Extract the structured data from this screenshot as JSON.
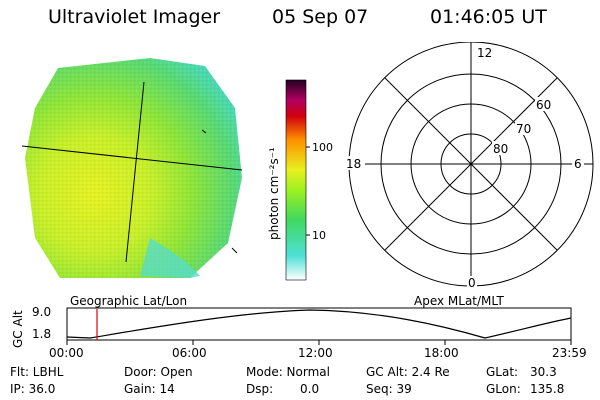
{
  "header": {
    "instrument": "Ultraviolet Imager",
    "date": "05 Sep 07",
    "time": "01:46:05 UT"
  },
  "colorbar": {
    "unit_label": "photon cm⁻²s⁻¹",
    "tick_labels": [
      "100",
      "10"
    ],
    "stops": [
      "#ffffff",
      "#4fe0d8",
      "#3fd860",
      "#9ef020",
      "#e8f020",
      "#ff9000",
      "#d00010",
      "#b00060",
      "#200020"
    ]
  },
  "geographic_panel": {
    "label": "Geographic Lat/Lon"
  },
  "polar_plot": {
    "label": "Apex MLat/MLT",
    "mlt_labels": {
      "top": "12",
      "left": "18",
      "right": "6",
      "bottom": "0"
    },
    "mlat_labels": [
      "60",
      "70",
      "80"
    ]
  },
  "altitude_plot": {
    "ylabel": "GC Alt",
    "y_ticks": [
      "9.0",
      "1.8"
    ],
    "x_ticks": [
      "00:00",
      "06:00",
      "12:00",
      "18:00",
      "23:59"
    ],
    "marker_time": "01:46"
  },
  "footer": {
    "flt": "Flt: LBHL",
    "ip": "IP: 36.0",
    "door": "Door: Open",
    "gain": "Gain: 14",
    "mode": "Mode: Normal",
    "dsp_label": "Dsp:",
    "dsp_value": "0.0",
    "gc_alt": "GC Alt: 2.4 Re",
    "seq": "Seq: 39",
    "glat_label": "GLat:",
    "glat_value": "30.3",
    "glon_label": "GLon:",
    "glon_value": "135.8"
  },
  "colors": {
    "marker_red": "#e00000"
  }
}
